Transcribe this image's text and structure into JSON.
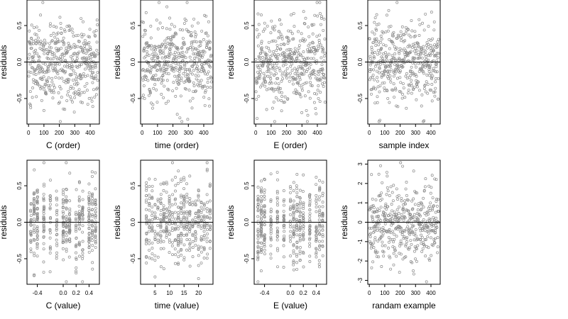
{
  "colors": {
    "point": "#8c8c8c",
    "frame": "#000000",
    "zero_line": "#000000",
    "background": "#ffffff"
  },
  "chart_data": [
    {
      "type": "scatter",
      "point_style": "open-circle",
      "n_points": 450,
      "seed": 101,
      "xlabel": "C (order)",
      "ylabel": "residuals",
      "xlim": [
        -10,
        460
      ],
      "ylim": [
        -0.85,
        0.85
      ],
      "xticks": [
        0,
        100,
        200,
        300,
        400
      ],
      "xtick_labels": [
        "0",
        "100",
        "200",
        "300",
        "400"
      ],
      "yticks": [
        -0.5,
        0.0,
        0.5
      ],
      "ytick_labels": [
        "-0.5",
        "0.0",
        "0.5"
      ],
      "hline": 0,
      "x_distribution": {
        "kind": "index",
        "min": 1,
        "max": 450
      },
      "y_distribution": {
        "kind": "normal",
        "mean": 0,
        "sd": 0.28
      },
      "grid": false,
      "legend": "none"
    },
    {
      "type": "scatter",
      "point_style": "open-circle",
      "n_points": 450,
      "seed": 202,
      "xlabel": "time (order)",
      "ylabel": "residuals",
      "xlim": [
        -10,
        460
      ],
      "ylim": [
        -0.85,
        0.85
      ],
      "xticks": [
        0,
        100,
        200,
        300,
        400
      ],
      "xtick_labels": [
        "0",
        "100",
        "200",
        "300",
        "400"
      ],
      "yticks": [
        -0.5,
        0.0,
        0.5
      ],
      "ytick_labels": [
        "-0.5",
        "0.0",
        "0.5"
      ],
      "hline": 0,
      "x_distribution": {
        "kind": "index",
        "min": 1,
        "max": 450
      },
      "y_distribution": {
        "kind": "normal",
        "mean": 0,
        "sd": 0.28
      },
      "grid": false,
      "legend": "none"
    },
    {
      "type": "scatter",
      "point_style": "open-circle",
      "n_points": 450,
      "seed": 303,
      "xlabel": "E (order)",
      "ylabel": "residuals",
      "xlim": [
        -10,
        460
      ],
      "ylim": [
        -0.85,
        0.85
      ],
      "xticks": [
        0,
        100,
        200,
        300,
        400
      ],
      "xtick_labels": [
        "0",
        "100",
        "200",
        "300",
        "400"
      ],
      "yticks": [
        -0.5,
        0.0,
        0.5
      ],
      "ytick_labels": [
        "-0.5",
        "0.0",
        "0.5"
      ],
      "hline": 0,
      "x_distribution": {
        "kind": "index",
        "min": 1,
        "max": 450
      },
      "y_distribution": {
        "kind": "normal",
        "mean": 0,
        "sd": 0.28
      },
      "grid": false,
      "legend": "none"
    },
    {
      "type": "scatter",
      "point_style": "open-circle",
      "n_points": 450,
      "seed": 404,
      "xlabel": "sample index",
      "ylabel": "residuals",
      "xlim": [
        -10,
        460
      ],
      "ylim": [
        -0.85,
        0.85
      ],
      "xticks": [
        0,
        100,
        200,
        300,
        400
      ],
      "xtick_labels": [
        "0",
        "100",
        "200",
        "300",
        "400"
      ],
      "yticks": [
        -0.5,
        0.0,
        0.5
      ],
      "ytick_labels": [
        "-0.5",
        "0.0",
        "0.5"
      ],
      "hline": 0,
      "x_distribution": {
        "kind": "index",
        "min": 1,
        "max": 450
      },
      "y_distribution": {
        "kind": "normal",
        "mean": 0,
        "sd": 0.28
      },
      "grid": false,
      "legend": "none"
    },
    {
      "type": "scatter",
      "point_style": "open-circle",
      "n_points": 450,
      "seed": 505,
      "xlabel": "C (value)",
      "ylabel": "residuals",
      "xlim": [
        -0.56,
        0.56
      ],
      "ylim": [
        -0.85,
        0.85
      ],
      "xticks": [
        -0.4,
        0.0,
        0.2,
        0.4
      ],
      "xtick_labels": [
        "-0.4",
        "0.0",
        "0.2",
        "0.4"
      ],
      "yticks": [
        -0.5,
        0.0,
        0.5
      ],
      "ytick_labels": [
        "-0.5",
        "0.0",
        "0.5"
      ],
      "hline": 0,
      "x_distribution": {
        "kind": "discrete",
        "levels": [
          -0.5,
          -0.45,
          -0.4,
          -0.3,
          -0.2,
          -0.1,
          0.0,
          0.05,
          0.1,
          0.2,
          0.25,
          0.3,
          0.4,
          0.45,
          0.5
        ],
        "jitter": 0.004
      },
      "y_distribution": {
        "kind": "normal",
        "mean": 0,
        "sd": 0.28
      },
      "grid": false,
      "legend": "none"
    },
    {
      "type": "scatter",
      "point_style": "open-circle",
      "n_points": 450,
      "seed": 606,
      "xlabel": "time (value)",
      "ylabel": "residuals",
      "xlim": [
        0,
        25
      ],
      "ylim": [
        -0.85,
        0.85
      ],
      "xticks": [
        5,
        10,
        15,
        20
      ],
      "xtick_labels": [
        "5",
        "10",
        "15",
        "20"
      ],
      "yticks": [
        -0.5,
        0.0,
        0.5
      ],
      "ytick_labels": [
        "-0.5",
        "0.0",
        "0.5"
      ],
      "hline": 0,
      "x_distribution": {
        "kind": "discrete",
        "levels": [
          2,
          3,
          4,
          5,
          6,
          7,
          8,
          9,
          10,
          11,
          12,
          13,
          14,
          15,
          16,
          17,
          18,
          19,
          20,
          21,
          22,
          23,
          24
        ],
        "jitter": 0.08
      },
      "y_distribution": {
        "kind": "normal",
        "mean": 0,
        "sd": 0.28
      },
      "grid": false,
      "legend": "none"
    },
    {
      "type": "scatter",
      "point_style": "open-circle",
      "n_points": 450,
      "seed": 707,
      "xlabel": "E (value)",
      "ylabel": "residuals",
      "xlim": [
        -0.56,
        0.56
      ],
      "ylim": [
        -0.85,
        0.85
      ],
      "xticks": [
        -0.4,
        0.0,
        0.2,
        0.4
      ],
      "xtick_labels": [
        "-0.4",
        "0.0",
        "0.2",
        "0.4"
      ],
      "yticks": [
        -0.5,
        0.0,
        0.5
      ],
      "ytick_labels": [
        "-0.5",
        "0.0",
        "0.5"
      ],
      "hline": 0,
      "x_distribution": {
        "kind": "discrete",
        "levels": [
          -0.5,
          -0.45,
          -0.4,
          -0.3,
          -0.2,
          -0.1,
          0.0,
          0.05,
          0.1,
          0.15,
          0.2,
          0.3,
          0.4,
          0.45,
          0.5
        ],
        "jitter": 0.004
      },
      "y_distribution": {
        "kind": "normal",
        "mean": 0,
        "sd": 0.28
      },
      "grid": false,
      "legend": "none"
    },
    {
      "type": "scatter",
      "point_style": "open-circle",
      "n_points": 450,
      "seed": 808,
      "xlabel": "randam example",
      "ylabel": "residuals",
      "xlim": [
        -10,
        460
      ],
      "ylim": [
        -3.2,
        3.2
      ],
      "xticks": [
        0,
        100,
        200,
        300,
        400
      ],
      "xtick_labels": [
        "0",
        "100",
        "200",
        "300",
        "400"
      ],
      "yticks": [
        -3,
        -2,
        -1,
        0,
        1,
        2,
        3
      ],
      "ytick_labels": [
        "-3",
        "-2",
        "-1",
        "0",
        "1",
        "2",
        "3"
      ],
      "hline": 0,
      "x_distribution": {
        "kind": "index",
        "min": 1,
        "max": 450
      },
      "y_distribution": {
        "kind": "normal",
        "mean": 0,
        "sd": 1.0
      },
      "grid": false,
      "legend": "none"
    }
  ]
}
